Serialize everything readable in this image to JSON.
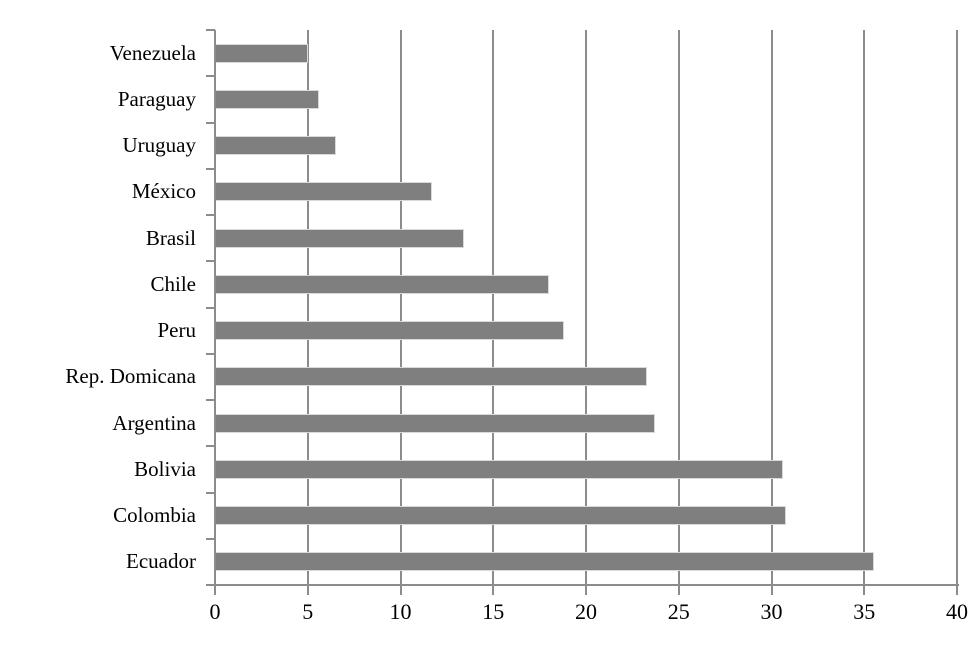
{
  "chart_data": {
    "type": "bar",
    "orientation": "horizontal",
    "title": "",
    "xlabel": "",
    "ylabel": "",
    "categories": [
      "Venezuela",
      "Paraguay",
      "Uruguay",
      "México",
      "Brasil",
      "Chile",
      "Peru",
      "Rep. Domicana",
      "Argentina",
      "Bolivia",
      "Colombia",
      "Ecuador"
    ],
    "values": [
      5.0,
      5.6,
      6.5,
      11.7,
      13.4,
      18.0,
      18.8,
      23.3,
      23.7,
      30.6,
      30.8,
      35.5
    ],
    "xlim": [
      0,
      40
    ],
    "x_ticks": [
      0,
      5,
      10,
      15,
      20,
      25,
      30,
      35,
      40
    ],
    "grid": "vertical-gridlines-at-each-x-tick",
    "legend": "none",
    "colors": {
      "bar": "#7f7f7f",
      "bar_border": "#d9d9d9",
      "gridline": "#8c8c8c",
      "axis": "#8c8c8c",
      "text": "#000000",
      "background": "#ffffff"
    }
  }
}
